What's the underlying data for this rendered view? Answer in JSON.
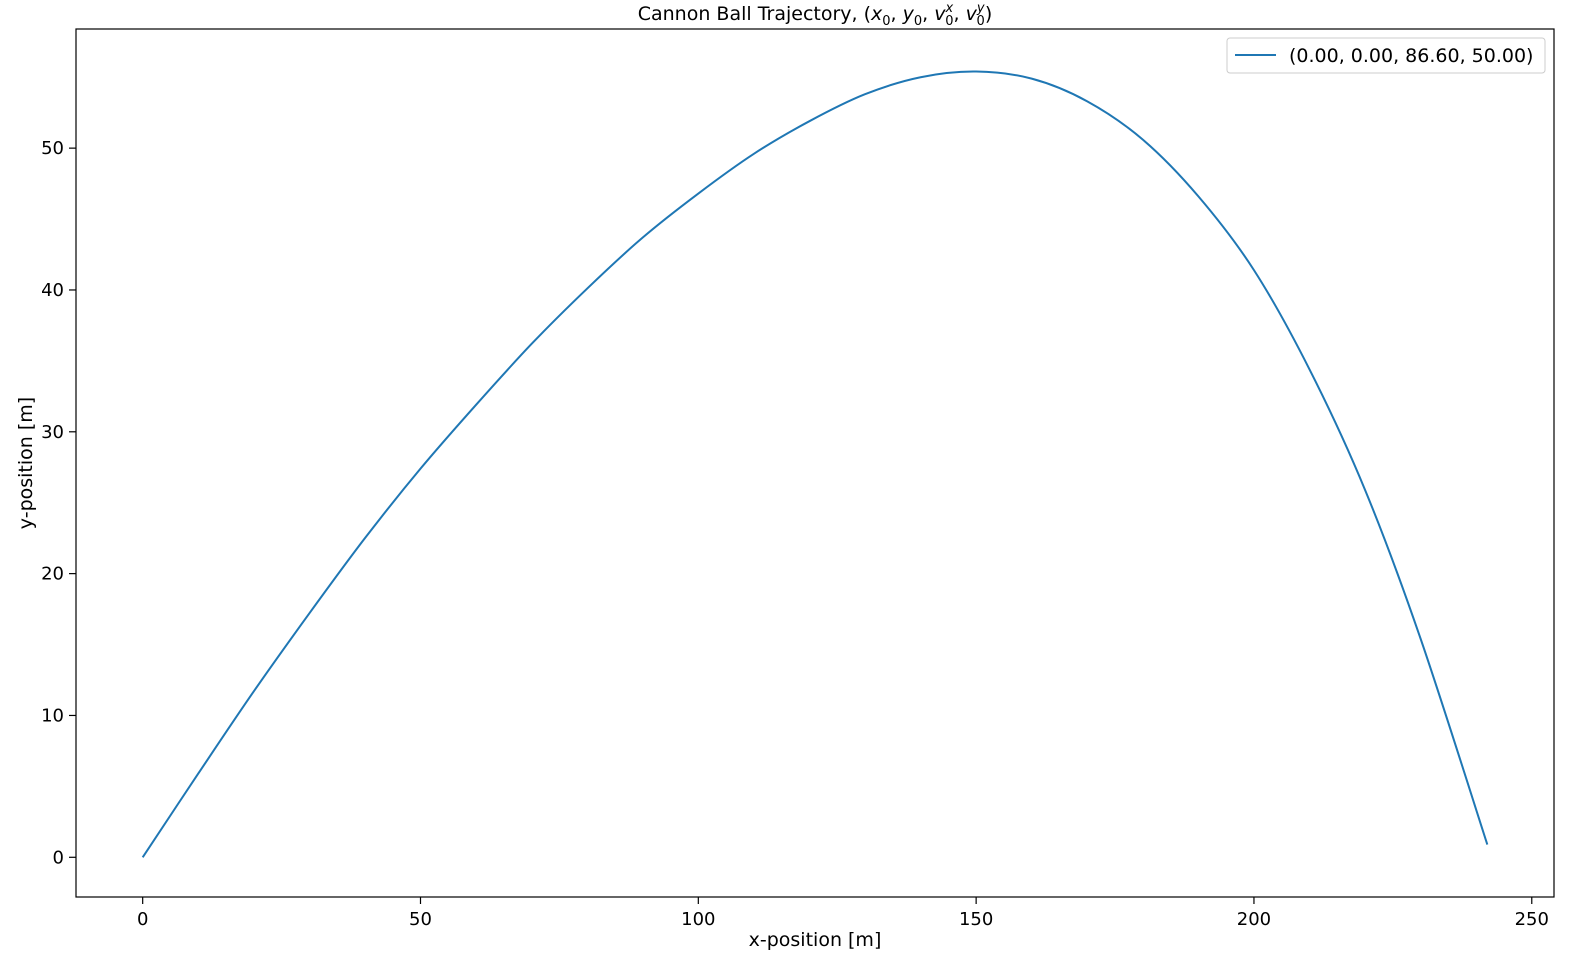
{
  "chart_data": {
    "type": "line",
    "title": {
      "prefix": "Cannon Ball Trajectory, (",
      "parts": [
        {
          "base": "x",
          "sub": "0"
        },
        {
          "base": "y",
          "sub": "0"
        },
        {
          "base": "v",
          "sub": "0",
          "sup": "x"
        },
        {
          "base": "v",
          "sub": "0",
          "sup": "y"
        }
      ],
      "separator": ", ",
      "suffix": ")"
    },
    "xlabel": "x-position [m]",
    "ylabel": "y-position [m]",
    "xlim": [
      -12,
      254
    ],
    "ylim": [
      -2.8,
      58.4
    ],
    "xticks": [
      0,
      50,
      100,
      150,
      200,
      250
    ],
    "yticks": [
      0,
      10,
      20,
      30,
      40,
      50
    ],
    "grid": false,
    "legend_position": "top-right",
    "series": [
      {
        "name": "(0.00, 0.00, 86.60, 50.00)",
        "color": "#1f77b4",
        "x": [
          0,
          10,
          20,
          30,
          40,
          50,
          60,
          70,
          80,
          90,
          100,
          110,
          120,
          130,
          140,
          150,
          160,
          170,
          180,
          190,
          200,
          210,
          220,
          230,
          242
        ],
        "y": [
          0,
          5.9,
          11.7,
          17.2,
          22.5,
          27.4,
          31.9,
          36.2,
          40.1,
          43.7,
          46.8,
          49.6,
          51.9,
          53.8,
          55.0,
          55.4,
          54.9,
          53.3,
          50.6,
          46.6,
          41.4,
          34.4,
          25.9,
          15.4,
          0.9
        ]
      }
    ]
  }
}
